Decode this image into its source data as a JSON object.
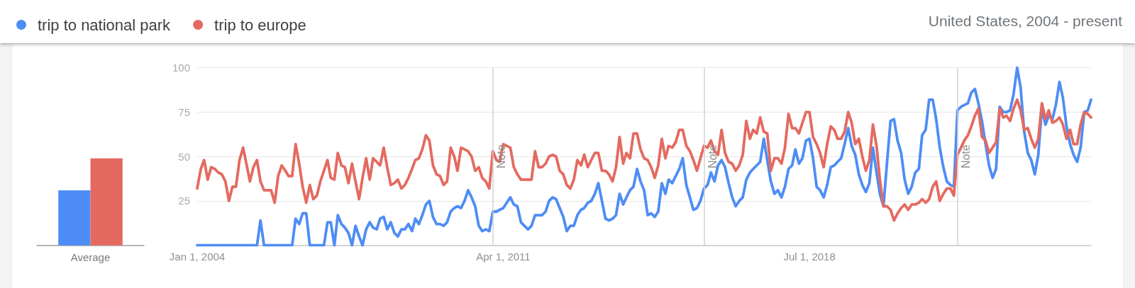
{
  "chart_data": [
    {
      "type": "bar",
      "categories": [
        "Average"
      ],
      "series": [
        {
          "color": "#4e8df5",
          "values": [
            31
          ]
        },
        {
          "color": "#e46a60",
          "values": [
            49
          ]
        }
      ],
      "ylim": [
        0,
        100
      ],
      "tick_labels": "x"
    },
    {
      "type": "line",
      "marker": "none",
      "legend": "top left",
      "grid": "y",
      "annotations": [
        "United States, 2004 - present"
      ],
      "x": [
        "2004-01",
        "2004-02",
        "2004-03",
        "2004-04",
        "2004-05",
        "2004-06",
        "2004-07",
        "2004-08",
        "2004-09",
        "2004-10",
        "2004-11",
        "2004-12",
        "2005-01",
        "2005-02",
        "2005-03",
        "2005-04",
        "2005-05",
        "2005-06",
        "2005-07",
        "2005-08",
        "2005-09",
        "2005-10",
        "2005-11",
        "2005-12",
        "2006-01",
        "2006-02",
        "2006-03",
        "2006-04",
        "2006-05",
        "2006-06",
        "2006-07",
        "2006-08",
        "2006-09",
        "2006-10",
        "2006-11",
        "2006-12",
        "2007-01",
        "2007-02",
        "2007-03",
        "2007-04",
        "2007-05",
        "2007-06",
        "2007-07",
        "2007-08",
        "2007-09",
        "2007-10",
        "2007-11",
        "2007-12",
        "2008-01",
        "2008-02",
        "2008-03",
        "2008-04",
        "2008-05",
        "2008-06",
        "2008-07",
        "2008-08",
        "2008-09",
        "2008-10",
        "2008-11",
        "2008-12",
        "2009-01",
        "2009-02",
        "2009-03",
        "2009-04",
        "2009-05",
        "2009-06",
        "2009-07",
        "2009-08",
        "2009-09",
        "2009-10",
        "2009-11",
        "2009-12",
        "2010-01",
        "2010-02",
        "2010-03",
        "2010-04",
        "2010-05",
        "2010-06",
        "2010-07",
        "2010-08",
        "2010-09",
        "2010-10",
        "2010-11",
        "2010-12",
        "2011-01",
        "2011-02",
        "2011-03",
        "2011-04",
        "2011-05",
        "2011-06",
        "2011-07",
        "2011-08",
        "2011-09",
        "2011-10",
        "2011-11",
        "2011-12",
        "2012-01",
        "2012-02",
        "2012-03",
        "2012-04",
        "2012-05",
        "2012-06",
        "2012-07",
        "2012-08",
        "2012-09",
        "2012-10",
        "2012-11",
        "2012-12",
        "2013-01",
        "2013-02",
        "2013-03",
        "2013-04",
        "2013-05",
        "2013-06",
        "2013-07",
        "2013-08",
        "2013-09",
        "2013-10",
        "2013-11",
        "2013-12",
        "2014-01",
        "2014-02",
        "2014-03",
        "2014-04",
        "2014-05",
        "2014-06",
        "2014-07",
        "2014-08",
        "2014-09",
        "2014-10",
        "2014-11",
        "2014-12",
        "2015-01",
        "2015-02",
        "2015-03",
        "2015-04",
        "2015-05",
        "2015-06",
        "2015-07",
        "2015-08",
        "2015-09",
        "2015-10",
        "2015-11",
        "2015-12",
        "2016-01",
        "2016-02",
        "2016-03",
        "2016-04",
        "2016-05",
        "2016-06",
        "2016-07",
        "2016-08",
        "2016-09",
        "2016-10",
        "2016-11",
        "2016-12",
        "2017-01",
        "2017-02",
        "2017-03",
        "2017-04",
        "2017-05",
        "2017-06",
        "2017-07",
        "2017-08",
        "2017-09",
        "2017-10",
        "2017-11",
        "2017-12",
        "2018-01",
        "2018-02",
        "2018-03",
        "2018-04",
        "2018-05",
        "2018-06",
        "2018-07",
        "2018-08",
        "2018-09",
        "2018-10",
        "2018-11",
        "2018-12",
        "2019-01",
        "2019-02",
        "2019-03",
        "2019-04",
        "2019-05",
        "2019-06",
        "2019-07",
        "2019-08",
        "2019-09",
        "2019-10",
        "2019-11",
        "2019-12",
        "2020-01",
        "2020-02",
        "2020-03",
        "2020-04",
        "2020-05",
        "2020-06",
        "2020-07",
        "2020-08",
        "2020-09",
        "2020-10",
        "2020-11",
        "2020-12",
        "2021-01",
        "2021-02",
        "2021-03",
        "2021-04",
        "2021-05",
        "2021-06",
        "2021-07",
        "2021-08",
        "2021-09",
        "2021-10",
        "2021-11",
        "2021-12",
        "2022-01",
        "2022-02",
        "2022-03",
        "2022-04",
        "2022-05",
        "2022-06",
        "2022-07",
        "2022-08",
        "2022-09",
        "2022-10",
        "2022-11",
        "2022-12",
        "2023-01",
        "2023-02",
        "2023-03",
        "2023-04",
        "2023-05",
        "2023-06",
        "2023-07",
        "2023-08",
        "2023-09",
        "2023-10",
        "2023-11",
        "2023-12",
        "2024-01",
        "2024-02",
        "2024-03",
        "2024-04",
        "2024-05",
        "2024-06",
        "2024-07",
        "2024-08",
        "2024-09",
        "2024-10",
        "2024-11",
        "2024-12",
        "2025-01",
        "2025-02",
        "2025-03"
      ],
      "series": [
        {
          "name": "trip to national park",
          "color": "#4e8df5",
          "values": [
            0,
            0,
            0,
            0,
            0,
            0,
            0,
            0,
            0,
            0,
            0,
            0,
            0,
            0,
            0,
            0,
            0,
            0,
            14,
            0,
            0,
            0,
            0,
            0,
            0,
            0,
            0,
            0,
            15,
            12,
            18,
            18,
            0,
            0,
            0,
            0,
            0,
            13,
            13,
            0,
            17,
            12,
            10,
            7,
            0,
            11,
            5,
            0,
            9,
            13,
            10,
            9,
            15,
            16,
            9,
            13,
            7,
            5,
            9,
            9,
            12,
            8,
            15,
            12,
            17,
            23,
            25,
            16,
            12,
            12,
            11,
            13,
            19,
            21,
            22,
            21,
            25,
            31,
            27,
            22,
            11,
            8,
            9,
            8,
            19,
            19,
            20,
            21,
            24,
            27,
            23,
            22,
            13,
            11,
            9,
            11,
            17,
            17,
            17,
            19,
            25,
            27,
            26,
            21,
            16,
            8,
            11,
            11,
            17,
            20,
            21,
            24,
            25,
            29,
            35,
            25,
            15,
            14,
            15,
            17,
            29,
            23,
            27,
            31,
            33,
            43,
            36,
            31,
            17,
            18,
            16,
            19,
            35,
            29,
            37,
            35,
            39,
            43,
            49,
            34,
            27,
            20,
            21,
            25,
            32,
            34,
            41,
            36,
            45,
            48,
            44,
            35,
            27,
            22,
            25,
            27,
            37,
            41,
            43,
            45,
            47,
            60,
            48,
            36,
            29,
            31,
            27,
            33,
            43,
            45,
            54,
            46,
            49,
            59,
            60,
            49,
            33,
            31,
            27,
            34,
            44,
            45,
            47,
            49,
            57,
            66,
            56,
            51,
            40,
            34,
            30,
            35,
            55,
            41,
            29,
            22,
            46,
            70,
            71,
            59,
            52,
            37,
            29,
            33,
            41,
            43,
            62,
            65,
            82,
            82,
            71,
            55,
            44,
            36,
            34,
            33,
            76,
            78,
            79,
            80,
            86,
            88,
            80,
            70,
            57,
            45,
            38,
            43,
            78,
            75,
            75,
            76,
            85,
            100,
            89,
            64,
            52,
            48,
            40,
            51,
            77,
            68,
            73,
            71,
            79,
            92,
            83,
            67,
            57,
            51,
            47,
            55,
            75,
            76,
            82
          ]
        },
        {
          "name": "trip to europe",
          "color": "#e46a60",
          "values": [
            32,
            43,
            48,
            37,
            44,
            43,
            41,
            40,
            36,
            25,
            33,
            33,
            48,
            55,
            46,
            36,
            44,
            48,
            36,
            31,
            31,
            31,
            24,
            39,
            45,
            42,
            39,
            39,
            57,
            46,
            33,
            24,
            34,
            26,
            28,
            36,
            42,
            48,
            38,
            37,
            52,
            45,
            44,
            35,
            46,
            36,
            26,
            38,
            49,
            37,
            49,
            47,
            45,
            55,
            44,
            34,
            35,
            37,
            32,
            34,
            38,
            43,
            48,
            49,
            54,
            62,
            59,
            45,
            40,
            39,
            34,
            36,
            55,
            50,
            42,
            55,
            54,
            53,
            50,
            42,
            44,
            38,
            36,
            32,
            53,
            48,
            47,
            57,
            56,
            55,
            44,
            40,
            37,
            37,
            37,
            37,
            53,
            44,
            44,
            46,
            50,
            51,
            50,
            42,
            40,
            34,
            32,
            37,
            48,
            45,
            51,
            44,
            48,
            52,
            52,
            42,
            42,
            40,
            36,
            44,
            61,
            46,
            52,
            49,
            63,
            63,
            54,
            49,
            48,
            44,
            38,
            45,
            60,
            49,
            56,
            55,
            58,
            65,
            65,
            56,
            53,
            48,
            42,
            49,
            56,
            55,
            59,
            53,
            51,
            65,
            52,
            47,
            46,
            42,
            45,
            51,
            70,
            60,
            65,
            63,
            72,
            64,
            63,
            42,
            49,
            49,
            46,
            55,
            74,
            66,
            66,
            63,
            69,
            75,
            75,
            61,
            57,
            52,
            44,
            57,
            67,
            65,
            60,
            60,
            64,
            75,
            69,
            57,
            60,
            50,
            42,
            48,
            68,
            56,
            37,
            22,
            22,
            20,
            14,
            18,
            21,
            23,
            20,
            23,
            23,
            24,
            26,
            24,
            26,
            33,
            36,
            25,
            29,
            32,
            32,
            28,
            51,
            55,
            59,
            62,
            67,
            73,
            77,
            61,
            59,
            52,
            55,
            58,
            77,
            72,
            73,
            70,
            77,
            82,
            76,
            65,
            66,
            60,
            55,
            60,
            80,
            71,
            76,
            69,
            70,
            72,
            68,
            60,
            65,
            57,
            57,
            68,
            75,
            74,
            72
          ]
        }
      ],
      "xlim": [
        "2004-01",
        "2025-03"
      ],
      "xticks": [
        {
          "value": "2004-01-01",
          "label": "Jan 1, 2004"
        },
        {
          "value": "2011-04-01",
          "label": "Apr 1, 2011"
        },
        {
          "value": "2018-07-01",
          "label": "Jul 1, 2018"
        }
      ],
      "ylim": [
        0,
        100
      ],
      "yticks": [
        25,
        50,
        75,
        100
      ],
      "ref_lines": [
        {
          "axis": "x",
          "value": "2011-01",
          "label": "Note"
        },
        {
          "axis": "x",
          "value": "2016-01",
          "label": "Note"
        },
        {
          "axis": "x",
          "value": "2022-01",
          "label": "Note"
        }
      ]
    }
  ]
}
